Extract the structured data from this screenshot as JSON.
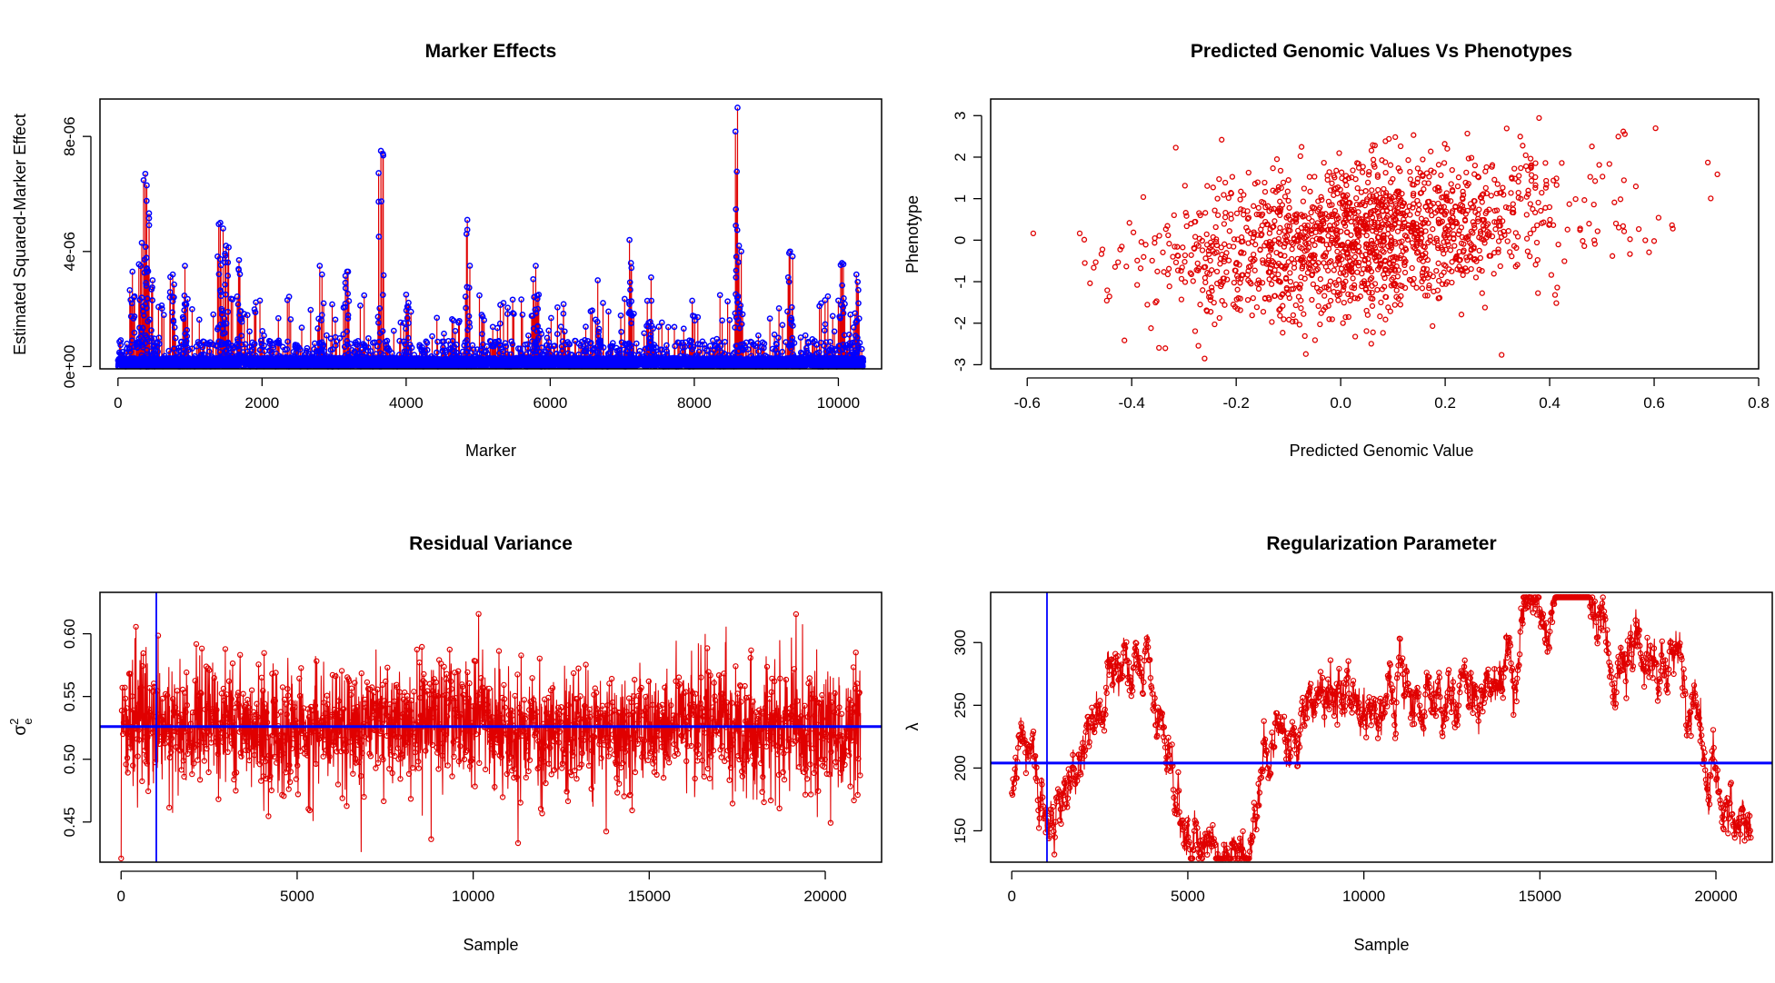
{
  "colors": {
    "red": "#e00000",
    "blue": "#0000ff",
    "frame": "#000000"
  },
  "chart_data": [
    {
      "id": "marker",
      "type": "line",
      "title": "Marker Effects",
      "xlabel": "Marker",
      "ylabel": "Estimated Squared-Marker Effect",
      "xlim": [
        -250,
        10600
      ],
      "ylim": [
        -8e-08,
        9.3e-06
      ],
      "xticks": [
        0,
        2000,
        4000,
        6000,
        8000,
        10000
      ],
      "xtick_labels": [
        "0",
        "2000",
        "4000",
        "6000",
        "8000",
        "10000"
      ],
      "yticks": [
        0,
        4e-06,
        8e-06
      ],
      "ytick_labels": [
        "0e+00",
        "4e-06",
        "8e-06"
      ],
      "x_range": [
        1,
        10346
      ],
      "series": [
        {
          "style": "vertical lines + points",
          "line_color": "red",
          "point_color": "blue"
        }
      ],
      "peaks": [
        {
          "x": 380,
          "y": 6.7e-06
        },
        {
          "x": 400,
          "y": 6.3e-06
        },
        {
          "x": 330,
          "y": 4.3e-06
        },
        {
          "x": 200,
          "y": 3.3e-06
        },
        {
          "x": 480,
          "y": 3e-06
        },
        {
          "x": 760,
          "y": 3.2e-06
        },
        {
          "x": 930,
          "y": 3.5e-06
        },
        {
          "x": 1420,
          "y": 5e-06
        },
        {
          "x": 1460,
          "y": 4.8e-06
        },
        {
          "x": 1500,
          "y": 4.2e-06
        },
        {
          "x": 1680,
          "y": 3.7e-06
        },
        {
          "x": 2800,
          "y": 3.5e-06
        },
        {
          "x": 3180,
          "y": 3.3e-06
        },
        {
          "x": 3650,
          "y": 7.5e-06
        },
        {
          "x": 4000,
          "y": 2.5e-06
        },
        {
          "x": 4850,
          "y": 5.1e-06
        },
        {
          "x": 5800,
          "y": 3.5e-06
        },
        {
          "x": 6660,
          "y": 3e-06
        },
        {
          "x": 7100,
          "y": 4.4e-06
        },
        {
          "x": 7400,
          "y": 3.1e-06
        },
        {
          "x": 8600,
          "y": 9e-06
        },
        {
          "x": 8620,
          "y": 4.2e-06
        },
        {
          "x": 9330,
          "y": 4e-06
        },
        {
          "x": 10050,
          "y": 3.6e-06
        },
        {
          "x": 10250,
          "y": 3.2e-06
        }
      ]
    },
    {
      "id": "pred",
      "type": "scatter",
      "title": "Predicted Genomic Values Vs Phenotypes",
      "xlabel": "Predicted Genomic Value",
      "ylabel": "Phenotype",
      "xlim": [
        -0.67,
        0.8
      ],
      "ylim": [
        -3.1,
        3.4
      ],
      "xticks": [
        -0.6,
        -0.4,
        -0.2,
        0.0,
        0.2,
        0.4,
        0.6,
        0.8
      ],
      "xtick_labels": [
        "-0.6",
        "-0.4",
        "-0.2",
        "0.0",
        "0.2",
        "0.4",
        "0.6",
        "0.8"
      ],
      "yticks": [
        -3,
        -2,
        -1,
        0,
        1,
        2,
        3
      ],
      "ytick_labels": [
        "-3",
        "-2",
        "-1",
        "0",
        "1",
        "2",
        "3"
      ],
      "n_points": 1600,
      "series": [
        {
          "style": "open circles",
          "color": "red"
        }
      ]
    },
    {
      "id": "resid",
      "type": "line",
      "title": "Residual Variance",
      "xlabel": "Sample",
      "ylabel": "σ²e",
      "xlim": [
        -600,
        21600
      ],
      "ylim": [
        0.418,
        0.633
      ],
      "xticks": [
        0,
        5000,
        10000,
        15000,
        20000
      ],
      "xtick_labels": [
        "0",
        "5000",
        "10000",
        "15000",
        "20000"
      ],
      "yticks": [
        0.45,
        0.5,
        0.55,
        0.6
      ],
      "ytick_labels": [
        "0.45",
        "0.50",
        "0.55",
        "0.60"
      ],
      "x_range": [
        1,
        21000
      ],
      "hline": 0.526,
      "vline": 1000,
      "series": [
        {
          "style": "line + points",
          "color": "red"
        }
      ]
    },
    {
      "id": "lambda",
      "type": "line",
      "title": "Regularization Parameter",
      "xlabel": "Sample",
      "ylabel": "λ",
      "xlim": [
        -600,
        21600
      ],
      "ylim": [
        125,
        340
      ],
      "xticks": [
        0,
        5000,
        10000,
        15000,
        20000
      ],
      "xtick_labels": [
        "0",
        "5000",
        "10000",
        "15000",
        "20000"
      ],
      "yticks": [
        150,
        200,
        250,
        300
      ],
      "ytick_labels": [
        "150",
        "200",
        "250",
        "300"
      ],
      "x_range": [
        1,
        21000
      ],
      "hline": 204,
      "vline": 1000,
      "series": [
        {
          "style": "line + points",
          "color": "red"
        }
      ],
      "trace_key_points": [
        {
          "x": 0,
          "y": 175
        },
        {
          "x": 500,
          "y": 235
        },
        {
          "x": 900,
          "y": 165
        },
        {
          "x": 3100,
          "y": 265
        },
        {
          "x": 3500,
          "y": 275
        },
        {
          "x": 5000,
          "y": 150
        },
        {
          "x": 6700,
          "y": 130
        },
        {
          "x": 7200,
          "y": 225
        },
        {
          "x": 9000,
          "y": 255
        },
        {
          "x": 10000,
          "y": 250
        },
        {
          "x": 13500,
          "y": 270
        },
        {
          "x": 15500,
          "y": 335
        },
        {
          "x": 18500,
          "y": 280
        },
        {
          "x": 20800,
          "y": 150
        }
      ]
    }
  ]
}
